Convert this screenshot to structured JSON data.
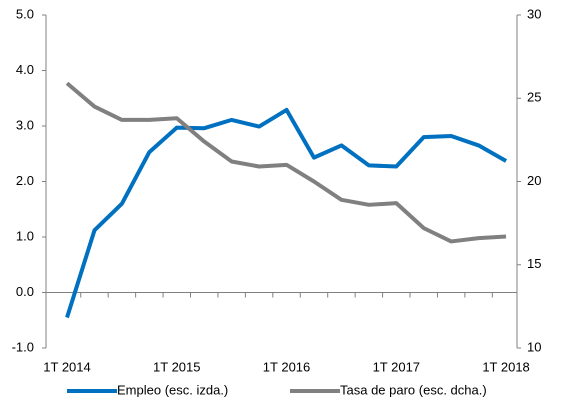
{
  "chart_data": {
    "type": "line",
    "categories": [
      "1T 2014",
      null,
      null,
      null,
      "1T 2015",
      null,
      null,
      null,
      "1T 2016",
      null,
      null,
      null,
      "1T 2017",
      null,
      null,
      null,
      "1T 2018"
    ],
    "series": [
      {
        "name": "Empleo (esc. izda.)",
        "color": "#0070c0",
        "values": [
          -0.45,
          1.12,
          1.6,
          2.53,
          2.97,
          2.96,
          3.11,
          2.99,
          3.29,
          2.43,
          2.65,
          2.29,
          2.27,
          2.8,
          2.82,
          2.65,
          2.37
        ]
      },
      {
        "name": "Tasa de paro (esc. dcha.)",
        "color": "#808080",
        "axis": "y2",
        "values": [
          25.9,
          24.5,
          23.7,
          23.7,
          23.8,
          22.4,
          21.2,
          20.9,
          21.0,
          20.0,
          18.9,
          18.6,
          18.7,
          17.2,
          16.4,
          16.6,
          16.7
        ]
      }
    ],
    "ylim": [
      -1,
      5
    ],
    "yticks": [
      {
        "value": -1,
        "label": "-1.0"
      },
      {
        "value": 0,
        "label": "0.0"
      },
      {
        "value": 1,
        "label": "1.0"
      },
      {
        "value": 2,
        "label": "2.0"
      },
      {
        "value": 3,
        "label": "3.0"
      },
      {
        "value": 4,
        "label": "4.0"
      },
      {
        "value": 5,
        "label": "5.0"
      }
    ],
    "y2lim": [
      10,
      30
    ],
    "y2ticks": [
      10,
      15,
      20,
      25,
      30
    ],
    "grid": false
  }
}
